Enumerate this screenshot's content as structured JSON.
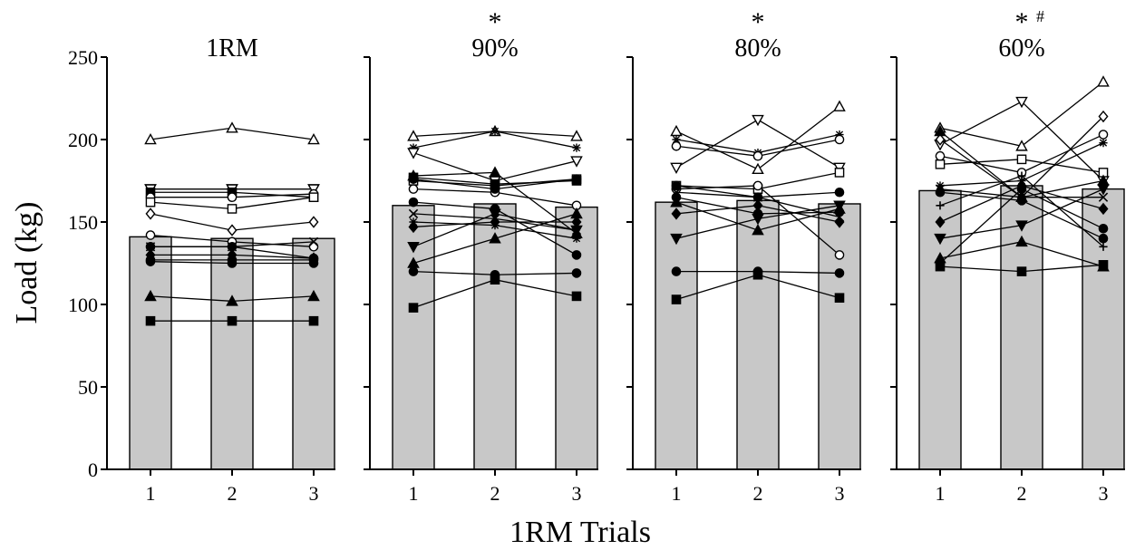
{
  "chart_data": {
    "type": "bar",
    "ylabel": "Load (kg)",
    "xlabel": "1RM Trials",
    "ylim": [
      0,
      250
    ],
    "yticks": [
      0,
      50,
      100,
      150,
      200,
      250
    ],
    "categories": [
      "1",
      "2",
      "3"
    ],
    "colors": {
      "bar_fill": "#c8c8c8",
      "line": "#000000"
    },
    "panels": [
      {
        "title": "1RM",
        "marker": "",
        "bar_values": [
          141,
          140,
          140
        ],
        "subjects": [
          {
            "symbol": "triangle-up-open",
            "values": [
              200,
              207,
              200
            ]
          },
          {
            "symbol": "triangle-down-filled",
            "values": [
              170,
              170,
              170
            ]
          },
          {
            "symbol": "triangle-down-open",
            "values": [
              170,
              170,
              170
            ]
          },
          {
            "symbol": "square-filled",
            "values": [
              168,
              168,
              165
            ]
          },
          {
            "symbol": "circle-open",
            "values": [
              165,
              165,
              167
            ]
          },
          {
            "symbol": "square-open",
            "values": [
              162,
              158,
              165
            ]
          },
          {
            "symbol": "diamond-open",
            "values": [
              155,
              145,
              150
            ]
          },
          {
            "symbol": "circle-open",
            "values": [
              142,
              138,
              135
            ]
          },
          {
            "symbol": "cross",
            "values": [
              135,
              135,
              138
            ]
          },
          {
            "symbol": "circle-filled",
            "values": [
              135,
              135,
              128
            ]
          },
          {
            "symbol": "diamond-filled",
            "values": [
              130,
              130,
              128
            ]
          },
          {
            "symbol": "circle-filled",
            "values": [
              127,
              127,
              127
            ]
          },
          {
            "symbol": "circle-filled",
            "values": [
              126,
              125,
              125
            ]
          },
          {
            "symbol": "triangle-up-filled",
            "values": [
              105,
              102,
              105
            ]
          },
          {
            "symbol": "square-filled",
            "values": [
              90,
              90,
              90
            ]
          }
        ]
      },
      {
        "title": "90%",
        "marker": "*",
        "bar_values": [
          160,
          161,
          159
        ],
        "subjects": [
          {
            "symbol": "triangle-up-open",
            "values": [
              202,
              205,
              202
            ]
          },
          {
            "symbol": "star",
            "values": [
              195,
              205,
              195
            ]
          },
          {
            "symbol": "triangle-down-open",
            "values": [
              192,
              175,
              187
            ]
          },
          {
            "symbol": "triangle-up-filled",
            "values": [
              178,
              180,
              143
            ]
          },
          {
            "symbol": "square-open",
            "values": [
              175,
              172,
              176
            ]
          },
          {
            "symbol": "circle-open",
            "values": [
              170,
              168,
              160
            ]
          },
          {
            "symbol": "circle-filled",
            "values": [
              176,
              170,
              176
            ]
          },
          {
            "symbol": "square-filled",
            "values": [
              177,
              173,
              175
            ]
          },
          {
            "symbol": "circle-filled",
            "values": [
              162,
              158,
              130
            ]
          },
          {
            "symbol": "cross",
            "values": [
              155,
              152,
              145
            ]
          },
          {
            "symbol": "diamond-filled",
            "values": [
              147,
              150,
              150
            ]
          },
          {
            "symbol": "star",
            "values": [
              150,
              148,
              140
            ]
          },
          {
            "symbol": "triangle-down-filled",
            "values": [
              135,
              155,
              145
            ]
          },
          {
            "symbol": "triangle-up-filled",
            "values": [
              125,
              140,
              155
            ]
          },
          {
            "symbol": "circle-filled",
            "values": [
              120,
              118,
              119
            ]
          },
          {
            "symbol": "square-filled",
            "values": [
              98,
              115,
              105
            ]
          }
        ]
      },
      {
        "title": "80%",
        "marker": "*",
        "bar_values": [
          162,
          163,
          161
        ],
        "subjects": [
          {
            "symbol": "triangle-up-open",
            "values": [
              205,
              182,
              220
            ]
          },
          {
            "symbol": "star",
            "values": [
              200,
              192,
              203
            ]
          },
          {
            "symbol": "triangle-down-open",
            "values": [
              183,
              212,
              183
            ]
          },
          {
            "symbol": "circle-open",
            "values": [
              196,
              190,
              200
            ]
          },
          {
            "symbol": "square-open",
            "values": [
              172,
              170,
              180
            ]
          },
          {
            "symbol": "circle-open",
            "values": [
              170,
              172,
              130
            ]
          },
          {
            "symbol": "circle-filled",
            "values": [
              172,
              165,
              168
            ]
          },
          {
            "symbol": "triangle-down-filled",
            "values": [
              140,
              152,
              160
            ]
          },
          {
            "symbol": "cross",
            "values": [
              168,
              165,
              153
            ]
          },
          {
            "symbol": "diamond-filled",
            "values": [
              155,
              160,
              150
            ]
          },
          {
            "symbol": "triangle-up-filled",
            "values": [
              162,
              145,
              158
            ]
          },
          {
            "symbol": "circle-filled",
            "values": [
              165,
              155,
              156
            ]
          },
          {
            "symbol": "circle-filled",
            "values": [
              120,
              120,
              119
            ]
          },
          {
            "symbol": "square-filled",
            "values": [
              103,
              118,
              104
            ]
          }
        ]
      },
      {
        "title": "60%",
        "marker": "*",
        "marker2": "#",
        "bar_values": [
          169,
          172,
          170
        ],
        "subjects": [
          {
            "symbol": "triangle-up-open",
            "values": [
              207,
              196,
              235
            ]
          },
          {
            "symbol": "triangle-down-open",
            "values": [
              197,
              223,
              175
            ]
          },
          {
            "symbol": "diamond-open",
            "values": [
              200,
              165,
              214
            ]
          },
          {
            "symbol": "circle-open",
            "values": [
              190,
              180,
              203
            ]
          },
          {
            "symbol": "square-open",
            "values": [
              185,
              188,
              180
            ]
          },
          {
            "symbol": "star",
            "values": [
              172,
              175,
              198
            ]
          },
          {
            "symbol": "triangle-up-filled",
            "values": [
              205,
              165,
              175
            ]
          },
          {
            "symbol": "circle-filled",
            "values": [
              168,
              163,
              140
            ]
          },
          {
            "symbol": "cross",
            "values": [
              170,
              165,
              165
            ]
          },
          {
            "symbol": "plus",
            "values": [
              160,
              178,
              135
            ]
          },
          {
            "symbol": "diamond-filled",
            "values": [
              150,
              172,
              158
            ]
          },
          {
            "symbol": "triangle-down-filled",
            "values": [
              140,
              148,
              170
            ]
          },
          {
            "symbol": "triangle-up-filled",
            "values": [
              128,
              138,
              123
            ]
          },
          {
            "symbol": "square-filled",
            "values": [
              123,
              120,
              124
            ]
          },
          {
            "symbol": "circle-filled",
            "values": [
              125,
              170,
              146
            ]
          }
        ]
      }
    ]
  }
}
